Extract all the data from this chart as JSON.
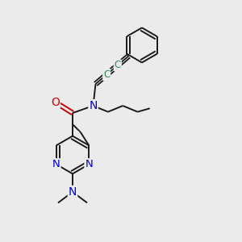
{
  "bg_color": "#ebebeb",
  "bond_color": "#1a1a1a",
  "N_color": "#0000cc",
  "O_color": "#cc0000",
  "C_triple_color": "#2e8b57",
  "font_size": 8.5,
  "bond_width": 1.4,
  "figsize": [
    3.0,
    3.0
  ],
  "dpi": 100,
  "xlim": [
    0,
    10
  ],
  "ylim": [
    0,
    10
  ],
  "scale": 1.0
}
